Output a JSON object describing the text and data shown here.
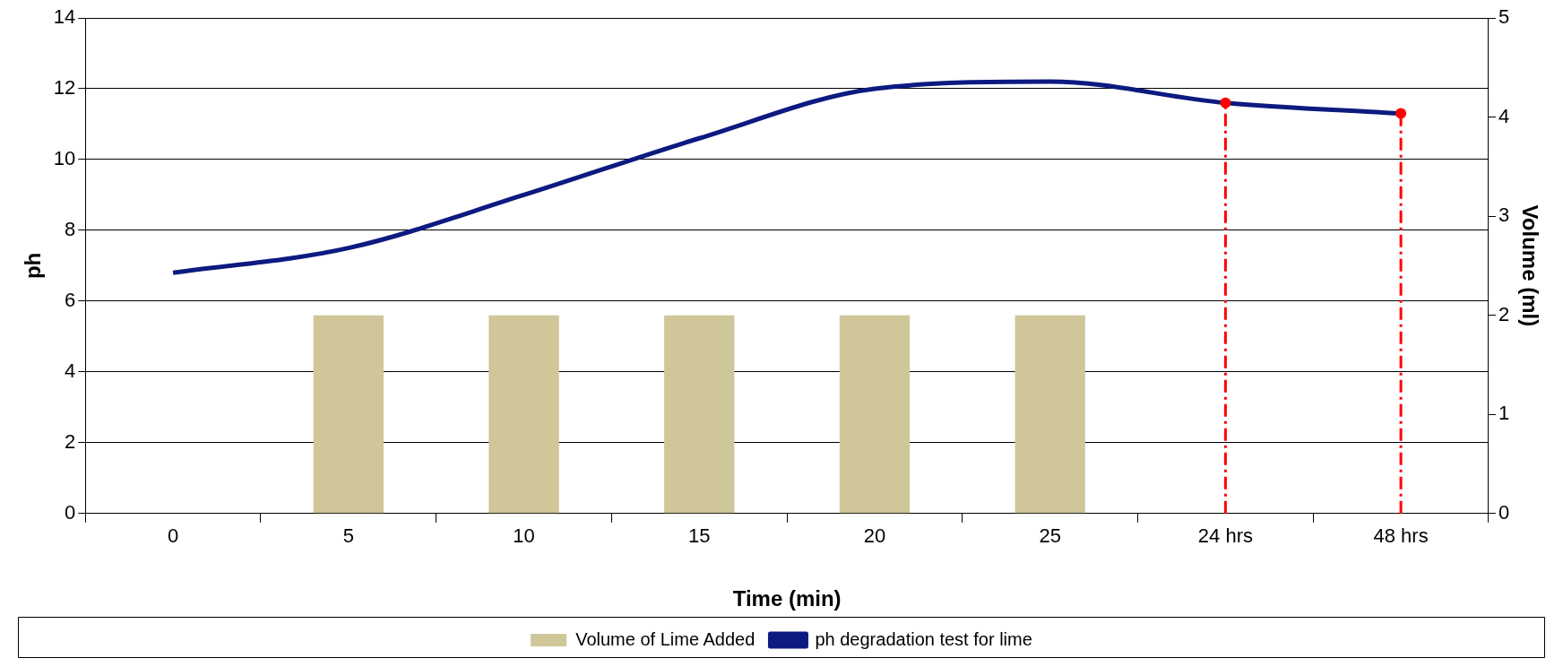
{
  "chart_data": {
    "type": "bar",
    "xlabel": "Time (min)",
    "ylabel": "ph",
    "y2label": "Volume (ml)",
    "categories": [
      "0",
      "5",
      "10",
      "15",
      "20",
      "25",
      "24 hrs",
      "48 hrs"
    ],
    "series": [
      {
        "name": "Volume of Lime Added",
        "axis": "y2",
        "color": "#cfc699",
        "values": [
          null,
          2,
          2,
          2,
          2,
          2,
          null,
          null
        ]
      },
      {
        "name": "ph degradation test for lime",
        "type": "line",
        "axis": "y",
        "color": "#0d1a80",
        "values": [
          6.8,
          7.5,
          9.0,
          10.6,
          12.0,
          12.2,
          11.6,
          11.3
        ]
      }
    ],
    "ylim": [
      0,
      14
    ],
    "yticks": [
      0,
      2,
      4,
      6,
      8,
      10,
      12,
      14
    ],
    "y2lim": [
      0,
      5
    ],
    "y2ticks": [
      0,
      1,
      2,
      3,
      4,
      5
    ],
    "ref_lines": [
      {
        "axis": "x",
        "value": "24 hrs",
        "color": "#ff0000",
        "line_style": "dashed"
      },
      {
        "axis": "x",
        "value": "48 hrs",
        "color": "#ff0000",
        "line_style": "dashed"
      }
    ],
    "grid": "y",
    "legend": "bottom",
    "marker": "none"
  }
}
